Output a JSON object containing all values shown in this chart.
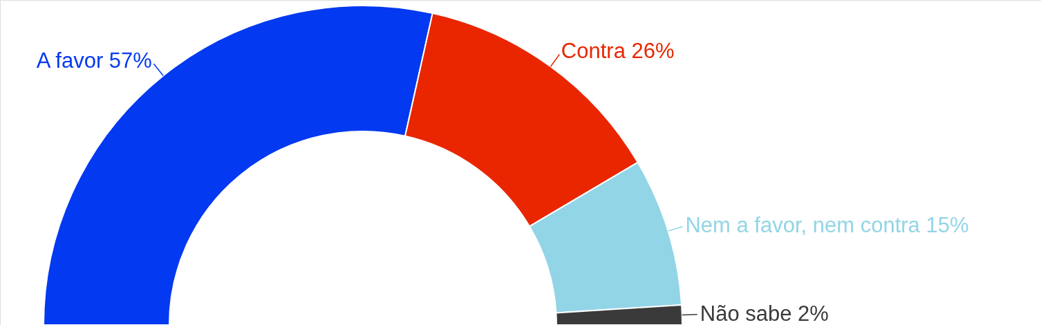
{
  "chart_data": {
    "type": "donut",
    "categories": [
      "A favor",
      "Contra",
      "Nem a favor, nem contra",
      "Não sabe"
    ],
    "values": [
      57,
      26,
      15,
      2
    ],
    "colors": [
      "#0339f0",
      "#e92600",
      "#92d5e6",
      "#3a3a3a"
    ],
    "value_labels": [
      "57%",
      "26%",
      "15%",
      "2%"
    ]
  }
}
